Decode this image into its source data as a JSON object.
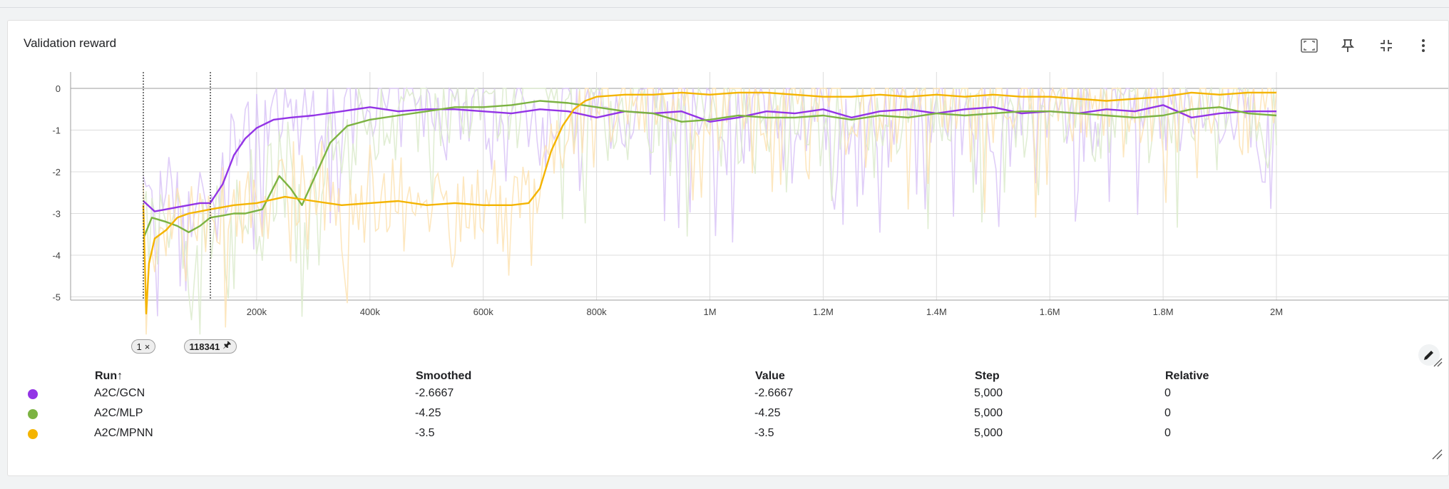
{
  "card": {
    "title": "Validation reward"
  },
  "toolbar": {
    "icons": [
      "fit-domain-icon",
      "pin-icon",
      "collapse-icon",
      "more-vert-icon"
    ]
  },
  "markers": [
    {
      "label": "1",
      "action": "×"
    },
    {
      "label": "118341",
      "action": "🖈"
    }
  ],
  "legend": {
    "headers": {
      "run": "Run",
      "sort": "↑",
      "smoothed": "Smoothed",
      "value": "Value",
      "step": "Step",
      "relative": "Relative"
    },
    "rows": [
      {
        "run": "A2C/GCN",
        "smoothed": "-2.6667",
        "value": "-2.6667",
        "step": "5,000",
        "relative": "0",
        "color": "#9334e6"
      },
      {
        "run": "A2C/MLP",
        "smoothed": "-4.25",
        "value": "-4.25",
        "step": "5,000",
        "relative": "0",
        "color": "#7cb342"
      },
      {
        "run": "A2C/MPNN",
        "smoothed": "-3.5",
        "value": "-3.5",
        "step": "5,000",
        "relative": "0",
        "color": "#f4b400"
      }
    ]
  },
  "chart_data": {
    "type": "line",
    "title": "Validation reward",
    "xlim": [
      0,
      2200000
    ],
    "ylim": [
      -6,
      0.3
    ],
    "x_ticks": [
      {
        "v": 200000,
        "label": "200k"
      },
      {
        "v": 400000,
        "label": "400k"
      },
      {
        "v": 600000,
        "label": "600k"
      },
      {
        "v": 800000,
        "label": "800k"
      },
      {
        "v": 1000000,
        "label": "1M"
      },
      {
        "v": 1200000,
        "label": "1.2M"
      },
      {
        "v": 1400000,
        "label": "1.4M"
      },
      {
        "v": 1600000,
        "label": "1.6M"
      },
      {
        "v": 1800000,
        "label": "1.8M"
      },
      {
        "v": 2000000,
        "label": "2M"
      }
    ],
    "y_ticks": [
      {
        "v": 0,
        "label": "0"
      },
      {
        "v": -1,
        "label": "-1"
      },
      {
        "v": -2,
        "label": "-2"
      },
      {
        "v": -3,
        "label": "-3"
      },
      {
        "v": -4,
        "label": "-4"
      },
      {
        "v": -5,
        "label": "-5"
      }
    ],
    "grid": true,
    "vertical_markers": [
      1,
      118341
    ],
    "series": [
      {
        "name": "A2C/GCN",
        "color": "#9334e6",
        "raw_color": "#d9c4f7",
        "x": [
          0,
          20000,
          40000,
          60000,
          80000,
          100000,
          118000,
          140000,
          160000,
          180000,
          200000,
          230000,
          260000,
          300000,
          350000,
          400000,
          450000,
          500000,
          550000,
          600000,
          650000,
          700000,
          750000,
          800000,
          850000,
          900000,
          950000,
          1000000,
          1050000,
          1100000,
          1150000,
          1200000,
          1250000,
          1300000,
          1350000,
          1400000,
          1450000,
          1500000,
          1550000,
          1600000,
          1650000,
          1700000,
          1750000,
          1800000,
          1850000,
          1900000,
          1950000,
          2000000
        ],
        "values": [
          -2.7,
          -2.95,
          -2.9,
          -2.85,
          -2.8,
          -2.75,
          -2.75,
          -2.3,
          -1.6,
          -1.2,
          -0.95,
          -0.75,
          -0.7,
          -0.65,
          -0.55,
          -0.45,
          -0.55,
          -0.5,
          -0.5,
          -0.55,
          -0.6,
          -0.5,
          -0.55,
          -0.7,
          -0.55,
          -0.6,
          -0.55,
          -0.8,
          -0.7,
          -0.55,
          -0.6,
          -0.5,
          -0.7,
          -0.55,
          -0.5,
          -0.6,
          -0.5,
          -0.45,
          -0.6,
          -0.55,
          -0.6,
          -0.5,
          -0.55,
          -0.4,
          -0.7,
          -0.6,
          -0.55,
          -0.55
        ]
      },
      {
        "name": "A2C/MLP",
        "color": "#7cb342",
        "raw_color": "#dcebcc",
        "x": [
          0,
          15000,
          40000,
          60000,
          80000,
          100000,
          118000,
          140000,
          160000,
          180000,
          210000,
          240000,
          260000,
          280000,
          300000,
          330000,
          360000,
          400000,
          450000,
          500000,
          550000,
          600000,
          650000,
          700000,
          750000,
          800000,
          850000,
          900000,
          950000,
          1000000,
          1050000,
          1100000,
          1150000,
          1200000,
          1250000,
          1300000,
          1350000,
          1400000,
          1450000,
          1500000,
          1550000,
          1600000,
          1650000,
          1700000,
          1750000,
          1800000,
          1850000,
          1900000,
          1950000,
          2000000
        ],
        "values": [
          -3.6,
          -3.1,
          -3.2,
          -3.3,
          -3.45,
          -3.3,
          -3.1,
          -3.05,
          -3.0,
          -3.0,
          -2.9,
          -2.1,
          -2.4,
          -2.8,
          -2.2,
          -1.3,
          -0.9,
          -0.75,
          -0.65,
          -0.55,
          -0.45,
          -0.45,
          -0.4,
          -0.3,
          -0.35,
          -0.45,
          -0.55,
          -0.6,
          -0.8,
          -0.75,
          -0.65,
          -0.7,
          -0.7,
          -0.65,
          -0.75,
          -0.65,
          -0.7,
          -0.6,
          -0.65,
          -0.6,
          -0.55,
          -0.55,
          -0.6,
          -0.65,
          -0.7,
          -0.65,
          -0.5,
          -0.45,
          -0.6,
          -0.65
        ]
      },
      {
        "name": "A2C/MPNN",
        "color": "#f4b400",
        "raw_color": "#fde3b4",
        "x": [
          0,
          5000,
          10000,
          20000,
          40000,
          60000,
          80000,
          100000,
          118000,
          140000,
          160000,
          200000,
          250000,
          300000,
          350000,
          400000,
          450000,
          500000,
          550000,
          600000,
          650000,
          680000,
          700000,
          720000,
          740000,
          760000,
          780000,
          800000,
          850000,
          900000,
          950000,
          1000000,
          1050000,
          1100000,
          1150000,
          1200000,
          1250000,
          1300000,
          1350000,
          1400000,
          1450000,
          1500000,
          1550000,
          1600000,
          1650000,
          1700000,
          1750000,
          1800000,
          1850000,
          1900000,
          1950000,
          2000000
        ],
        "values": [
          -2.8,
          -5.4,
          -4.2,
          -3.6,
          -3.4,
          -3.1,
          -3.0,
          -2.95,
          -2.9,
          -2.85,
          -2.8,
          -2.75,
          -2.6,
          -2.7,
          -2.8,
          -2.75,
          -2.7,
          -2.8,
          -2.75,
          -2.8,
          -2.8,
          -2.75,
          -2.4,
          -1.5,
          -0.9,
          -0.5,
          -0.3,
          -0.2,
          -0.15,
          -0.15,
          -0.1,
          -0.15,
          -0.1,
          -0.1,
          -0.15,
          -0.2,
          -0.2,
          -0.15,
          -0.2,
          -0.15,
          -0.2,
          -0.15,
          -0.2,
          -0.2,
          -0.25,
          -0.3,
          -0.25,
          -0.2,
          -0.1,
          -0.15,
          -0.1,
          -0.1
        ]
      }
    ]
  }
}
